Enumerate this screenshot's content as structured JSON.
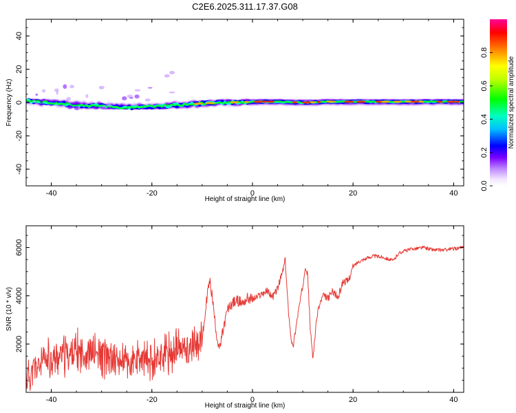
{
  "title": "C2E6.2025.311.17.37.G08",
  "chart_data": [
    {
      "type": "heatmap",
      "xlabel": "Height of straight line (km)",
      "ylabel": "Frequency (Hz)",
      "xlim": [
        -45,
        42
      ],
      "ylim": [
        -50,
        50
      ],
      "xticks": [
        "-40",
        "-20",
        "0",
        "20",
        "40"
      ],
      "yticks": [
        "-40",
        "-20",
        "0",
        "20",
        "40"
      ],
      "colorbar": {
        "label": "Normalized spectral amplitude",
        "range": [
          0,
          1
        ],
        "ticks": [
          "0.0",
          "0.2",
          "0.4",
          "0.6",
          "0.8"
        ]
      },
      "ridge_frequency_hz": [
        [
          -45,
          1.0
        ],
        [
          -40,
          0.0
        ],
        [
          -35,
          -1.5
        ],
        [
          -30,
          -2.0
        ],
        [
          -25,
          -3.0
        ],
        [
          -20,
          -2.5
        ],
        [
          -15,
          -1.5
        ],
        [
          -10,
          -0.5
        ],
        [
          -5,
          0.0
        ],
        [
          0,
          0.5
        ],
        [
          5,
          0.5
        ],
        [
          10,
          0.0
        ],
        [
          15,
          0.5
        ],
        [
          20,
          0.5
        ],
        [
          30,
          0.5
        ],
        [
          40,
          0.5
        ],
        [
          42,
          0.5
        ]
      ]
    },
    {
      "type": "line",
      "xlabel": "Height of straight line (km)",
      "ylabel": "SNR (10 * v/v)",
      "xlim": [
        -45,
        42
      ],
      "ylim": [
        0,
        6900
      ],
      "xticks": [
        "-40",
        "-20",
        "0",
        "20",
        "40"
      ],
      "yticks": [
        "2000",
        "4000",
        "6000"
      ],
      "line_color": "#e53935",
      "series": [
        {
          "x": [
            -45,
            -42,
            -40,
            -38,
            -36,
            -34,
            -32,
            -30,
            -28,
            -26,
            -24,
            -22,
            -20,
            -18,
            -16,
            -14,
            -12,
            -10,
            -9.5,
            -9,
            -8.5,
            -8,
            -7.5,
            -7,
            -6.5,
            -6,
            -5,
            -4,
            -3,
            -2,
            -1,
            0,
            1,
            2,
            3,
            4,
            5,
            6,
            6.5,
            7,
            7.5,
            8,
            8.5,
            9,
            10,
            10.5,
            11,
            11.5,
            12,
            12.5,
            13,
            14,
            15,
            16,
            17,
            18,
            19,
            20,
            21,
            22,
            24,
            26,
            28,
            29,
            30,
            32,
            34,
            36,
            38,
            40,
            42
          ],
          "y": [
            600,
            1200,
            1400,
            1500,
            1600,
            1700,
            1650,
            1500,
            1400,
            1300,
            1200,
            1300,
            1400,
            1500,
            1700,
            1800,
            1900,
            2200,
            3000,
            4100,
            4600,
            4000,
            3000,
            2200,
            1800,
            2400,
            3400,
            3700,
            3800,
            3700,
            3900,
            3850,
            3950,
            4100,
            4200,
            3950,
            4300,
            5000,
            5500,
            3800,
            2600,
            1800,
            2500,
            3200,
            4400,
            5300,
            4800,
            2600,
            1400,
            2500,
            3400,
            4000,
            3900,
            4200,
            3900,
            4600,
            4600,
            5200,
            5400,
            5500,
            5650,
            5600,
            5450,
            5750,
            5850,
            5950,
            6000,
            5900,
            5900,
            5950,
            6000
          ]
        }
      ]
    }
  ]
}
